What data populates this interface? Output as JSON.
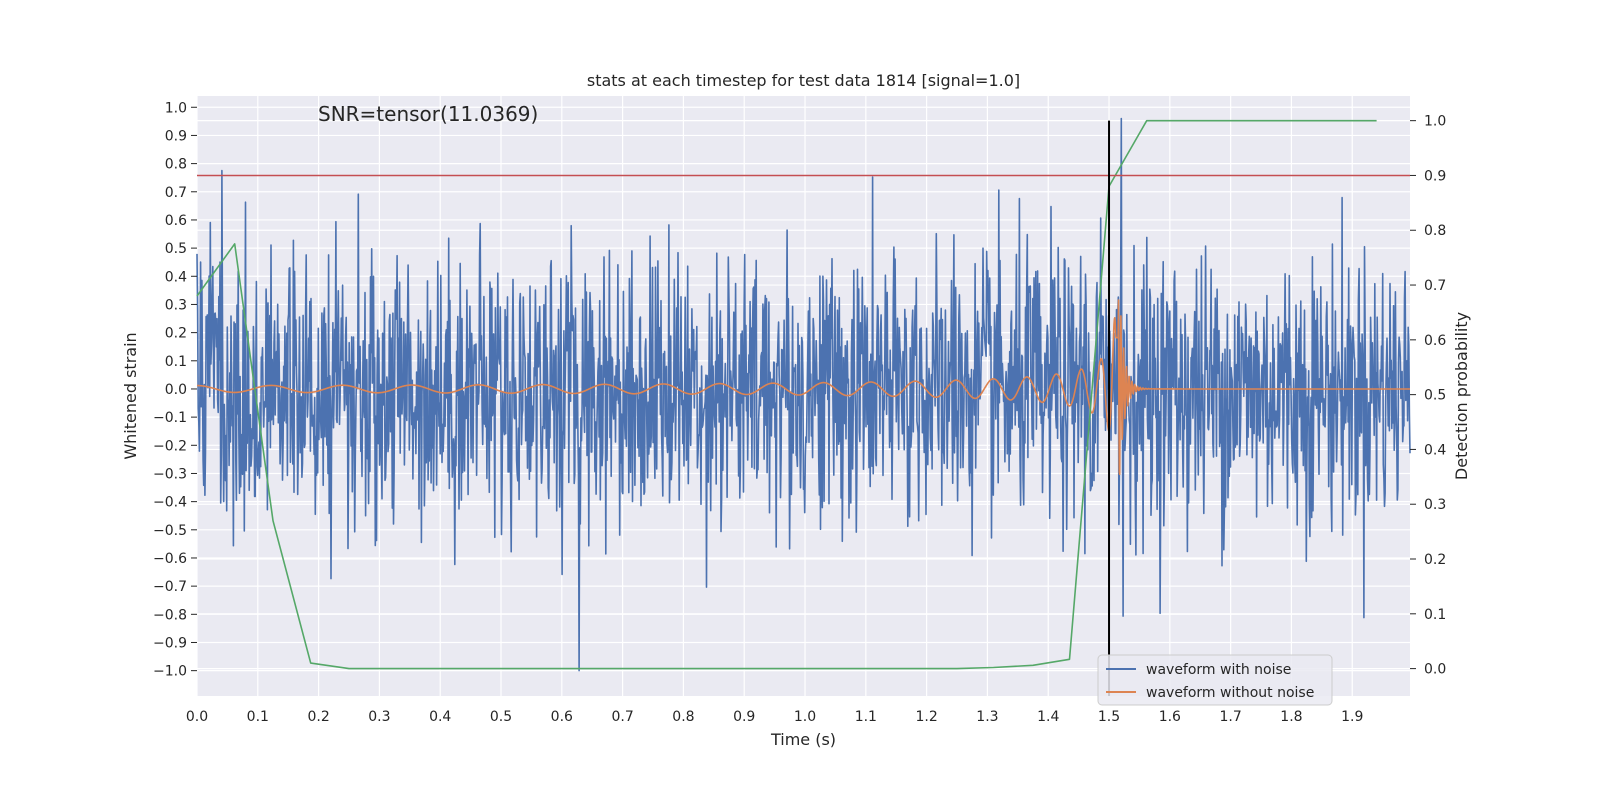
{
  "chart_data": {
    "type": "line",
    "title": "stats at each timestep for test data 1814 [signal=1.0]",
    "xlabel": "Time (s)",
    "ylabel": "Whitened strain",
    "y2label": "Detection probability",
    "annotation": "SNR=tensor(11.0369)",
    "xlim": [
      0.0,
      1.995
    ],
    "ylim": [
      -1.09,
      1.04
    ],
    "y2lim": [
      -0.05,
      1.045
    ],
    "x_ticks": [
      "0.0",
      "0.1",
      "0.2",
      "0.3",
      "0.4",
      "0.5",
      "0.6",
      "0.7",
      "0.8",
      "0.9",
      "1.0",
      "1.1",
      "1.2",
      "1.3",
      "1.4",
      "1.5",
      "1.6",
      "1.7",
      "1.8",
      "1.9"
    ],
    "y_ticks": [
      "1.0",
      "0.9",
      "0.8",
      "0.7",
      "0.6",
      "0.5",
      "0.4",
      "0.3",
      "0.2",
      "0.1",
      "0.0",
      "−0.1",
      "−0.2",
      "−0.3",
      "−0.4",
      "−0.5",
      "−0.6",
      "−0.7",
      "−0.8",
      "−0.9",
      "−1.0"
    ],
    "y2_ticks": [
      "1.0",
      "0.9",
      "0.8",
      "0.7",
      "0.6",
      "0.5",
      "0.4",
      "0.3",
      "0.2",
      "0.1",
      "0.0"
    ],
    "grid": true,
    "legend_position": "bottom-right",
    "threshold": {
      "y2": 0.9,
      "color": "#c44e52"
    },
    "vline": {
      "x": 1.5,
      "color": "#000000"
    },
    "series": [
      {
        "name": "waveform with noise",
        "color": "#4c72b0",
        "axis": "left",
        "style": "noise",
        "x_start": 0.0,
        "x_end": 1.995,
        "sigma": 0.24,
        "peaks": [
          {
            "x": 1.52,
            "y": 0.94
          },
          {
            "x": 1.523,
            "y": -0.86
          },
          {
            "x": 0.628,
            "y": -1.0
          },
          {
            "x": 0.08,
            "y": 0.67
          }
        ]
      },
      {
        "name": "waveform without noise",
        "color": "#dd8452",
        "axis": "left",
        "style": "chirp",
        "merger_x": 1.515,
        "x_end": 1.995
      },
      {
        "name": "",
        "color": "#55a868",
        "axis": "right",
        "x": [
          0.0,
          0.062,
          0.125,
          0.187,
          0.25,
          0.5,
          1.0,
          1.25,
          1.31,
          1.375,
          1.435,
          1.5,
          1.562,
          1.94
        ],
        "y": [
          0.68,
          0.775,
          0.27,
          0.01,
          0.0,
          0.0,
          0.0,
          0.0,
          0.002,
          0.006,
          0.017,
          0.88,
          1.0,
          1.0
        ]
      }
    ]
  },
  "legend": {
    "items": [
      {
        "label": "waveform with noise",
        "color": "#4c72b0"
      },
      {
        "label": "waveform without noise",
        "color": "#dd8452"
      }
    ]
  }
}
